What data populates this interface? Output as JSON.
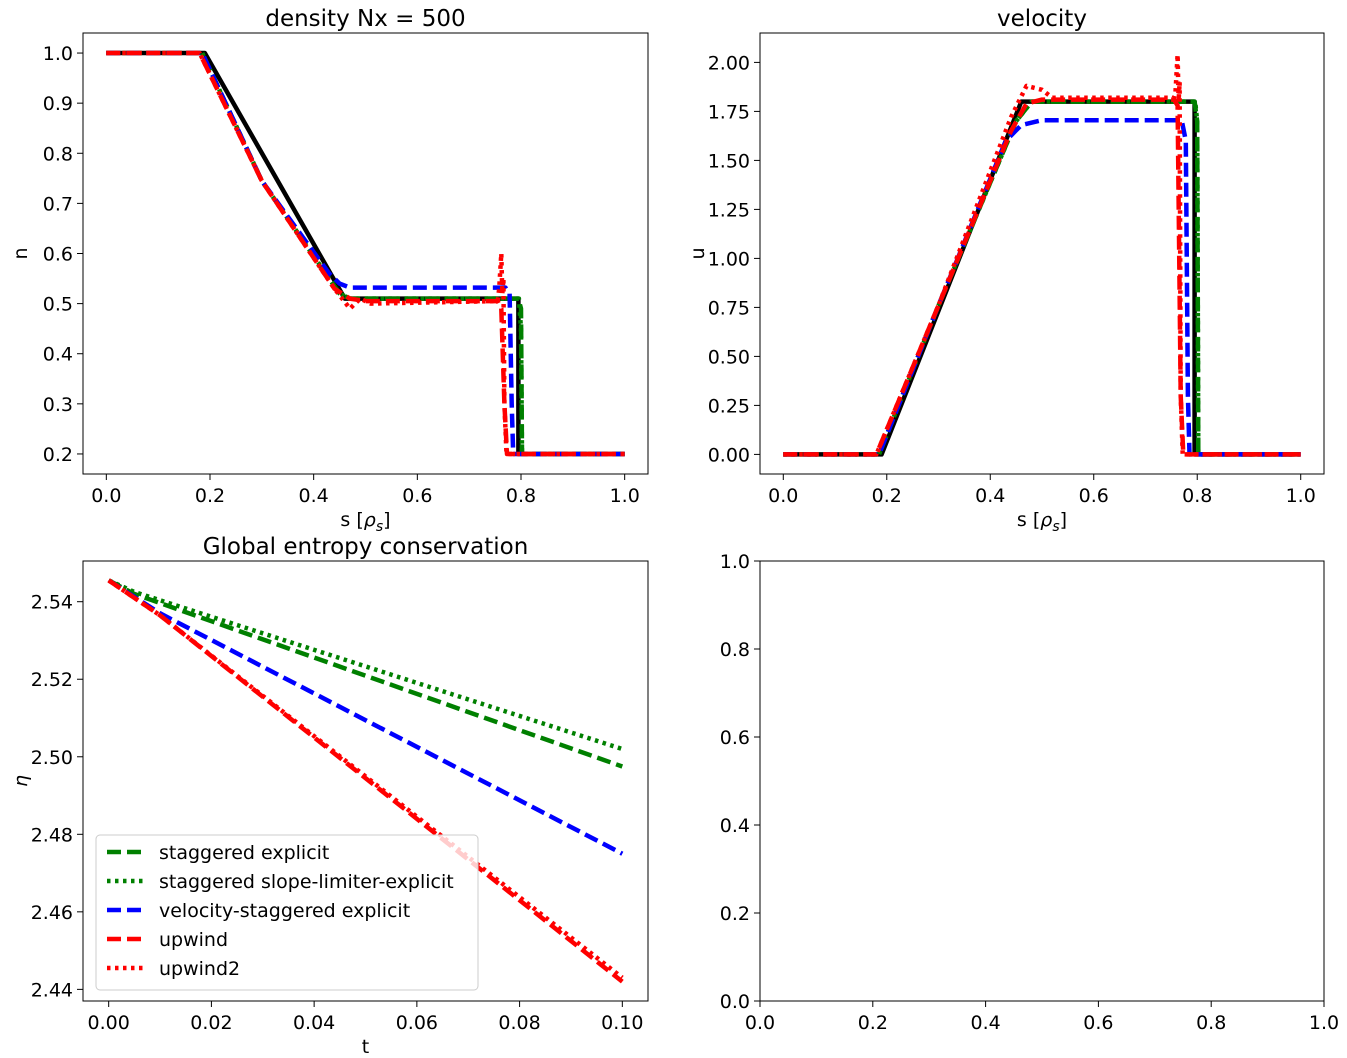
{
  "chart_data": [
    {
      "type": "line",
      "title": "density Nx = 500",
      "xlabel": "s [ρs]",
      "xlabel_main": "s [",
      "xlabel_sym": "ρ",
      "xlabel_sub": "s",
      "xlabel_end": "]",
      "ylabel": "n",
      "xlim": [
        -0.045,
        1.045
      ],
      "ylim": [
        0.16,
        1.04
      ],
      "xticks": [
        "0.0",
        "0.2",
        "0.4",
        "0.6",
        "0.8",
        "1.0"
      ],
      "xtick_values": [
        0.0,
        0.2,
        0.4,
        0.6,
        0.8,
        1.0
      ],
      "yticks": [
        "0.2",
        "0.3",
        "0.4",
        "0.5",
        "0.6",
        "0.7",
        "0.8",
        "0.9",
        "1.0"
      ],
      "ytick_values": [
        0.2,
        0.3,
        0.4,
        0.5,
        0.6,
        0.7,
        0.8,
        0.9,
        1.0
      ],
      "series": [
        {
          "style": "solid",
          "color": "#000000",
          "x": [
            0.0,
            0.19,
            0.46,
            0.795,
            0.795,
            1.0
          ],
          "y": [
            1.0,
            1.0,
            0.51,
            0.51,
            0.2,
            0.2
          ]
        },
        {
          "style": "dashed",
          "color": "#008000",
          "x": [
            0.0,
            0.185,
            0.3,
            0.45,
            0.47,
            0.795,
            0.8,
            0.802,
            1.0
          ],
          "y": [
            1.0,
            1.0,
            0.745,
            0.52,
            0.51,
            0.51,
            0.49,
            0.2,
            0.2
          ]
        },
        {
          "style": "dotted",
          "color": "#008000",
          "x": [
            0.0,
            0.185,
            0.3,
            0.45,
            0.47,
            0.796,
            0.8,
            0.802,
            1.0
          ],
          "y": [
            1.0,
            1.0,
            0.745,
            0.52,
            0.51,
            0.51,
            0.45,
            0.2,
            0.2
          ]
        },
        {
          "style": "dashed",
          "color": "#0000ff",
          "x": [
            0.0,
            0.185,
            0.3,
            0.43,
            0.45,
            0.47,
            0.77,
            0.778,
            0.782,
            0.785,
            1.0
          ],
          "y": [
            1.0,
            1.0,
            0.745,
            0.56,
            0.54,
            0.532,
            0.532,
            0.52,
            0.3,
            0.2,
            0.2
          ]
        },
        {
          "style": "dashed",
          "color": "#ff0000",
          "x": [
            0.0,
            0.18,
            0.3,
            0.44,
            0.47,
            0.5,
            0.755,
            0.762,
            0.768,
            0.773,
            1.0
          ],
          "y": [
            1.0,
            1.0,
            0.745,
            0.53,
            0.51,
            0.505,
            0.505,
            0.49,
            0.3,
            0.2,
            0.2
          ]
        },
        {
          "style": "dotted",
          "color": "#ff0000",
          "x": [
            0.0,
            0.18,
            0.3,
            0.44,
            0.47,
            0.49,
            0.51,
            0.755,
            0.758,
            0.762,
            0.764,
            0.766,
            0.768,
            0.772,
            1.0
          ],
          "y": [
            1.0,
            1.0,
            0.745,
            0.53,
            0.49,
            0.51,
            0.5,
            0.505,
            0.53,
            0.6,
            0.52,
            0.55,
            0.3,
            0.2,
            0.2
          ]
        }
      ]
    },
    {
      "type": "line",
      "title": "velocity",
      "xlabel": "s [ρs]",
      "xlabel_main": "s [",
      "xlabel_sym": "ρ",
      "xlabel_sub": "s",
      "xlabel_end": "]",
      "ylabel": "u",
      "xlim": [
        -0.045,
        1.045
      ],
      "ylim": [
        -0.1,
        2.15
      ],
      "xticks": [
        "0.0",
        "0.2",
        "0.4",
        "0.6",
        "0.8",
        "1.0"
      ],
      "xtick_values": [
        0.0,
        0.2,
        0.4,
        0.6,
        0.8,
        1.0
      ],
      "yticks": [
        "0.00",
        "0.25",
        "0.50",
        "0.75",
        "1.00",
        "1.25",
        "1.50",
        "1.75",
        "2.00"
      ],
      "ytick_values": [
        0.0,
        0.25,
        0.5,
        0.75,
        1.0,
        1.25,
        1.5,
        1.75,
        2.0
      ],
      "series": [
        {
          "style": "solid",
          "color": "#000000",
          "x": [
            0.0,
            0.19,
            0.46,
            0.795,
            0.795,
            1.0
          ],
          "y": [
            0.0,
            0.0,
            1.8,
            1.8,
            0.0,
            0.0
          ]
        },
        {
          "style": "dashed",
          "color": "#008000",
          "x": [
            0.0,
            0.185,
            0.3,
            0.45,
            0.48,
            0.795,
            0.8,
            0.802,
            1.0
          ],
          "y": [
            0.0,
            0.0,
            0.76,
            1.7,
            1.8,
            1.8,
            1.7,
            0.0,
            0.0
          ]
        },
        {
          "style": "dotted",
          "color": "#008000",
          "x": [
            0.0,
            0.185,
            0.3,
            0.45,
            0.48,
            0.796,
            0.8,
            0.802,
            1.0
          ],
          "y": [
            0.0,
            0.0,
            0.76,
            1.7,
            1.8,
            1.8,
            1.7,
            0.0,
            0.0
          ]
        },
        {
          "style": "dashed",
          "color": "#0000ff",
          "x": [
            0.0,
            0.185,
            0.3,
            0.43,
            0.46,
            0.5,
            0.77,
            0.778,
            0.782,
            0.785,
            1.0
          ],
          "y": [
            0.0,
            0.0,
            0.76,
            1.6,
            1.68,
            1.705,
            1.705,
            1.6,
            0.3,
            0.0,
            0.0
          ]
        },
        {
          "style": "dashed",
          "color": "#ff0000",
          "x": [
            0.0,
            0.18,
            0.3,
            0.44,
            0.47,
            0.5,
            0.755,
            0.762,
            0.768,
            0.773,
            1.0
          ],
          "y": [
            0.0,
            0.0,
            0.76,
            1.65,
            1.79,
            1.81,
            1.81,
            1.78,
            0.3,
            0.0,
            0.0
          ]
        },
        {
          "style": "dotted",
          "color": "#ff0000",
          "x": [
            0.0,
            0.18,
            0.3,
            0.44,
            0.47,
            0.5,
            0.52,
            0.755,
            0.758,
            0.762,
            0.764,
            0.766,
            0.768,
            0.772,
            1.0
          ],
          "y": [
            0.0,
            0.0,
            0.76,
            1.72,
            1.88,
            1.86,
            1.82,
            1.82,
            1.85,
            2.04,
            1.8,
            1.9,
            0.3,
            0.0,
            0.0
          ]
        }
      ]
    },
    {
      "type": "line",
      "title": "Global entropy conservation",
      "xlabel": "t",
      "ylabel": "η",
      "xlim": [
        -0.005,
        0.105
      ],
      "ylim": [
        2.437,
        2.5505
      ],
      "xticks": [
        "0.00",
        "0.02",
        "0.04",
        "0.06",
        "0.08",
        "0.10"
      ],
      "xtick_values": [
        0.0,
        0.02,
        0.04,
        0.06,
        0.08,
        0.1
      ],
      "yticks": [
        "2.44",
        "2.46",
        "2.48",
        "2.50",
        "2.52",
        "2.54"
      ],
      "ytick_values": [
        2.44,
        2.46,
        2.48,
        2.5,
        2.52,
        2.54
      ],
      "legend": "lower-left",
      "series": [
        {
          "name": "staggered explicit",
          "style": "dashed",
          "color": "#008000",
          "x": [
            0.0,
            0.005,
            0.1
          ],
          "y": [
            2.5455,
            2.542,
            2.4975
          ]
        },
        {
          "name": "staggered slope-limiter-explicit",
          "style": "dotted",
          "color": "#008000",
          "x": [
            0.0,
            0.005,
            0.1
          ],
          "y": [
            2.5455,
            2.5425,
            2.502
          ]
        },
        {
          "name": "velocity-staggered explicit",
          "style": "dashed",
          "color": "#0000ff",
          "x": [
            0.0,
            0.01,
            0.1
          ],
          "y": [
            2.5455,
            2.537,
            2.475
          ]
        },
        {
          "name": "upwind",
          "style": "dashed",
          "color": "#ff0000",
          "x": [
            0.0,
            0.01,
            0.1
          ],
          "y": [
            2.5455,
            2.5365,
            2.442
          ]
        },
        {
          "name": "upwind2",
          "style": "dotted",
          "color": "#ff0000",
          "x": [
            0.0,
            0.01,
            0.1
          ],
          "y": [
            2.5455,
            2.5365,
            2.443
          ]
        }
      ]
    },
    {
      "type": "line",
      "title": "",
      "xlabel": "",
      "ylabel": "",
      "xlim": [
        0.0,
        1.0
      ],
      "ylim": [
        0.0,
        1.0
      ],
      "xticks": [
        "0.0",
        "0.2",
        "0.4",
        "0.6",
        "0.8",
        "1.0"
      ],
      "xtick_values": [
        0.0,
        0.2,
        0.4,
        0.6,
        0.8,
        1.0
      ],
      "yticks": [
        "0.0",
        "0.2",
        "0.4",
        "0.6",
        "0.8",
        "1.0"
      ],
      "ytick_values": [
        0.0,
        0.2,
        0.4,
        0.6,
        0.8,
        1.0
      ],
      "series": []
    }
  ]
}
